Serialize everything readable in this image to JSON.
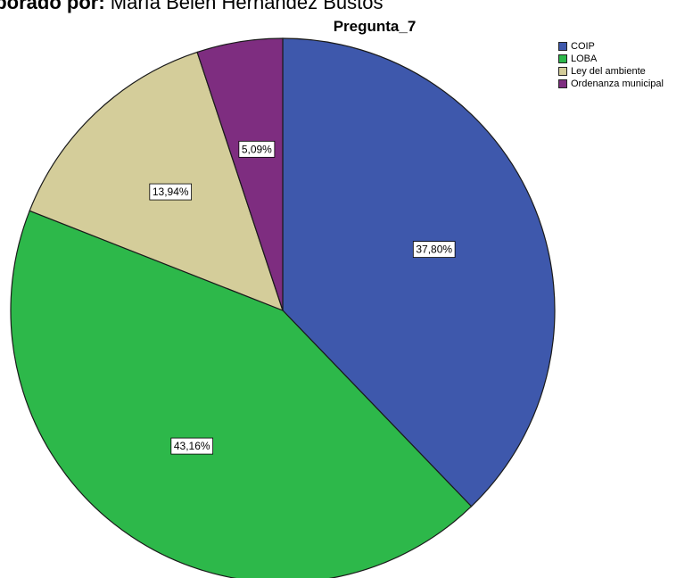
{
  "caption": {
    "bold": "aborado por:",
    "text": " María Belén Hernández Bustos"
  },
  "chart_data": {
    "type": "pie",
    "title": "Pregunta_7",
    "categories": [
      "COIP",
      "LOBA",
      "Ley del ambiente",
      "Ordenanza municipal"
    ],
    "values": [
      37.8,
      43.16,
      13.94,
      5.09
    ],
    "labels": [
      "37,80%",
      "43,16%",
      "13,94%",
      "5,09%"
    ],
    "colors": [
      "#3E58AC",
      "#2DB84A",
      "#D4CD9A",
      "#7E2D80"
    ],
    "legend_position": "top-right"
  }
}
